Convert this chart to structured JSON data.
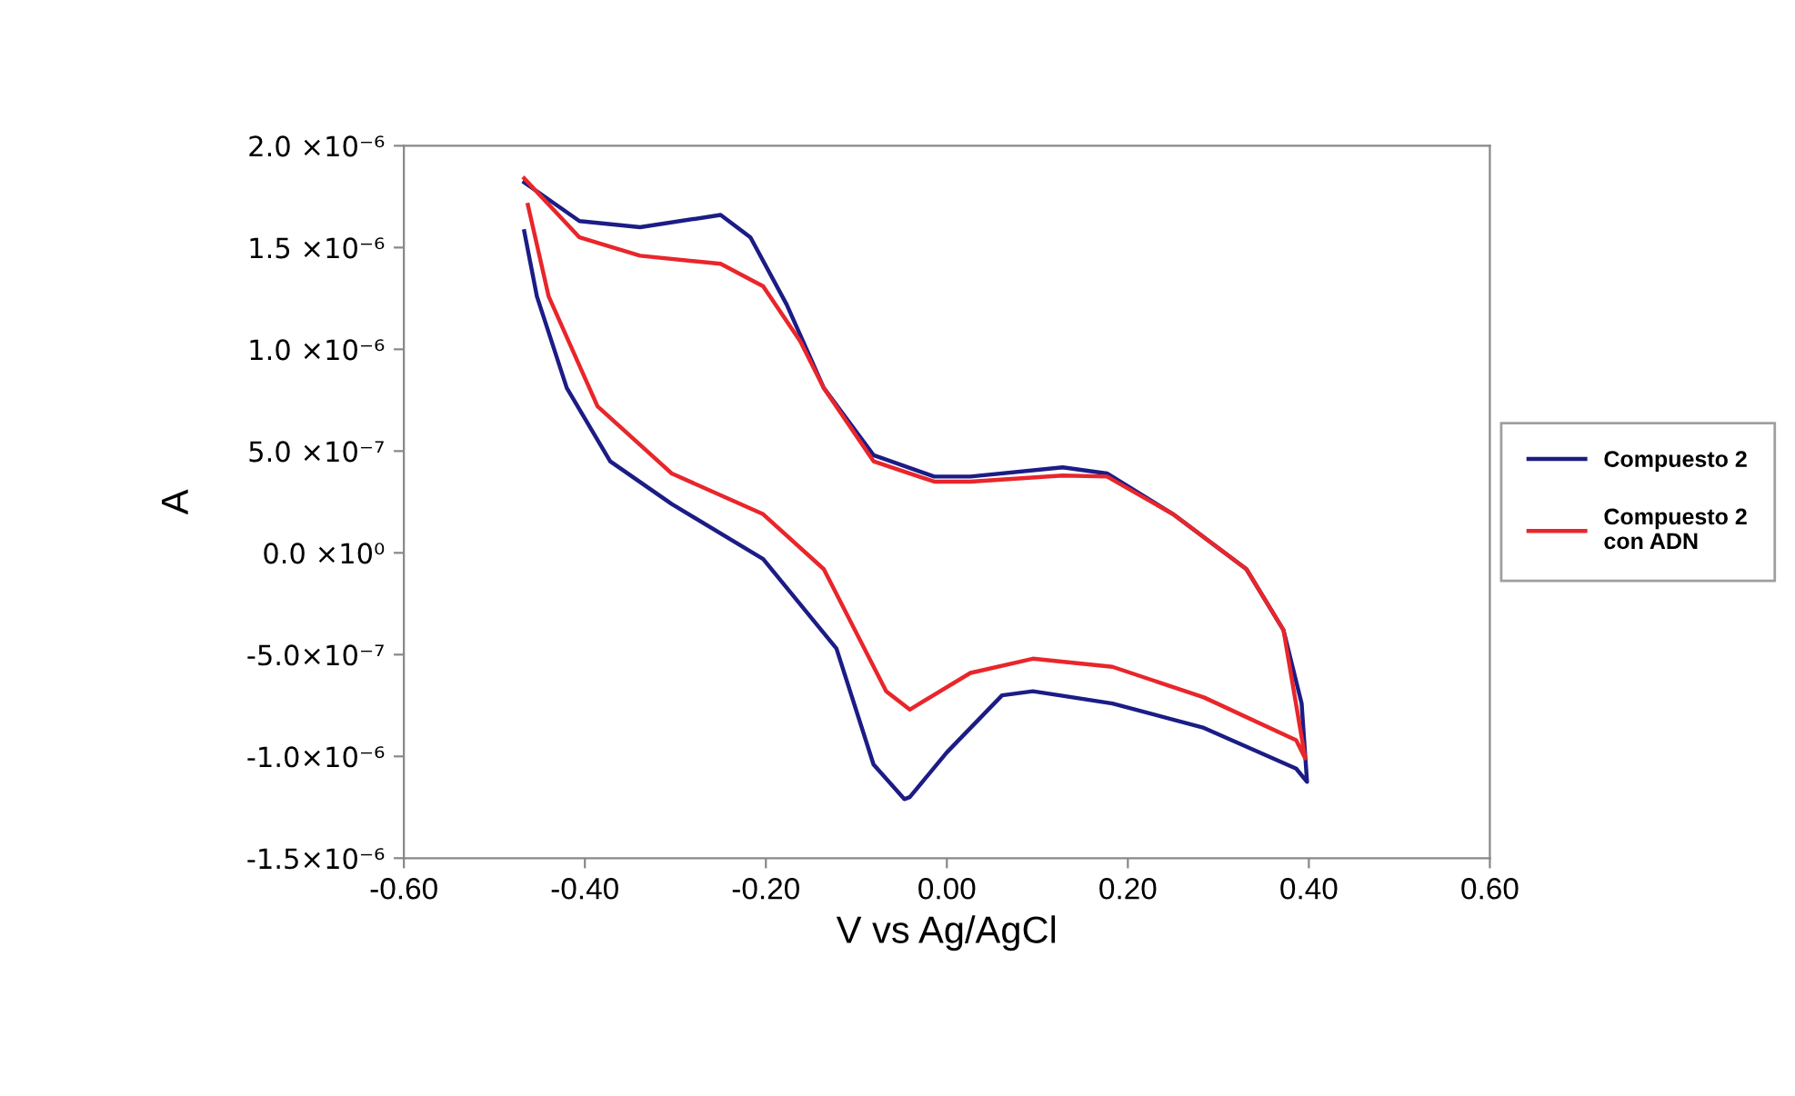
{
  "chart_data": {
    "type": "line",
    "xlabel": "V vs Ag/AgCl",
    "ylabel": "A",
    "xlim": [
      -0.6,
      0.6
    ],
    "xticks": [
      {
        "value": -0.6,
        "label": "-0.60"
      },
      {
        "value": -0.4,
        "label": "-0.40"
      },
      {
        "value": -0.2,
        "label": "-0.20"
      },
      {
        "value": 0.0,
        "label": "0.00"
      },
      {
        "value": 0.2,
        "label": "0.20"
      },
      {
        "value": 0.4,
        "label": "0.40"
      },
      {
        "value": 0.6,
        "label": "0.60"
      }
    ],
    "ylim": [
      -1.5e-06,
      2e-06
    ],
    "yticks": [
      {
        "value": -1.5e-06,
        "label": "-1.5×10⁻⁶"
      },
      {
        "value": -1e-06,
        "label": "-1.0×10⁻⁶"
      },
      {
        "value": -5e-07,
        "label": "-5.0×10⁻⁷"
      },
      {
        "value": 0.0,
        "label": "0.0 ×10⁰"
      },
      {
        "value": 5e-07,
        "label": "5.0 ×10⁻⁷"
      },
      {
        "value": 1e-06,
        "label": "1.0 ×10⁻⁶"
      },
      {
        "value": 1.5e-06,
        "label": "1.5 ×10⁻⁶"
      },
      {
        "value": 2e-06,
        "label": "2.0 ×10⁻⁶"
      }
    ],
    "grid": false,
    "legend": "right",
    "marker": "none",
    "line_style": "solid",
    "series": [
      {
        "name": "Compuesto 2",
        "color": "#1c1c86",
        "x": [
          -0.467,
          -0.406,
          -0.339,
          -0.25,
          -0.217,
          -0.177,
          -0.136,
          -0.081,
          -0.014,
          0.026,
          0.128,
          0.177,
          0.25,
          0.331,
          0.372,
          0.392,
          0.398,
          0.386,
          0.284,
          0.183,
          0.095,
          0.061,
          0.0,
          -0.041,
          -0.047,
          -0.081,
          -0.122,
          -0.203,
          -0.304,
          -0.372,
          -0.42,
          -0.453,
          -0.467
        ],
        "values": [
          1.82e-06,
          1.63e-06,
          1.6e-06,
          1.66e-06,
          1.55e-06,
          1.22e-06,
          8.1e-07,
          4.8e-07,
          3.75e-07,
          3.75e-07,
          4.2e-07,
          3.9e-07,
          1.9e-07,
          -8e-08,
          -3.8e-07,
          -7.4e-07,
          -1.125e-06,
          -1.06e-06,
          -8.6e-07,
          -7.4e-07,
          -6.8e-07,
          -7e-07,
          -9.8e-07,
          -1.2e-06,
          -1.21e-06,
          -1.04e-06,
          -4.7e-07,
          -3e-08,
          2.4e-07,
          4.5e-07,
          8.1e-07,
          1.26e-06,
          1.58e-06
        ]
      },
      {
        "name": "Compuesto 2\ncon ADN",
        "color": "#e8262b",
        "x": [
          -0.467,
          -0.406,
          -0.339,
          -0.25,
          -0.203,
          -0.162,
          -0.136,
          -0.081,
          -0.014,
          0.026,
          0.128,
          0.177,
          0.25,
          0.331,
          0.372,
          0.396,
          0.386,
          0.284,
          0.183,
          0.095,
          0.026,
          -0.041,
          -0.067,
          -0.136,
          -0.203,
          -0.304,
          -0.386,
          -0.44,
          -0.463
        ],
        "values": [
          1.84e-06,
          1.55e-06,
          1.46e-06,
          1.42e-06,
          1.31e-06,
          1.04e-06,
          8.1e-07,
          4.5e-07,
          3.5e-07,
          3.5e-07,
          3.8e-07,
          3.75e-07,
          1.9e-07,
          -8e-08,
          -3.8e-07,
          -1.01e-06,
          -9.2e-07,
          -7.1e-07,
          -5.6e-07,
          -5.2e-07,
          -5.9e-07,
          -7.7e-07,
          -6.8e-07,
          -8e-08,
          1.9e-07,
          3.9e-07,
          7.2e-07,
          1.26e-06,
          1.71e-06
        ]
      }
    ]
  }
}
